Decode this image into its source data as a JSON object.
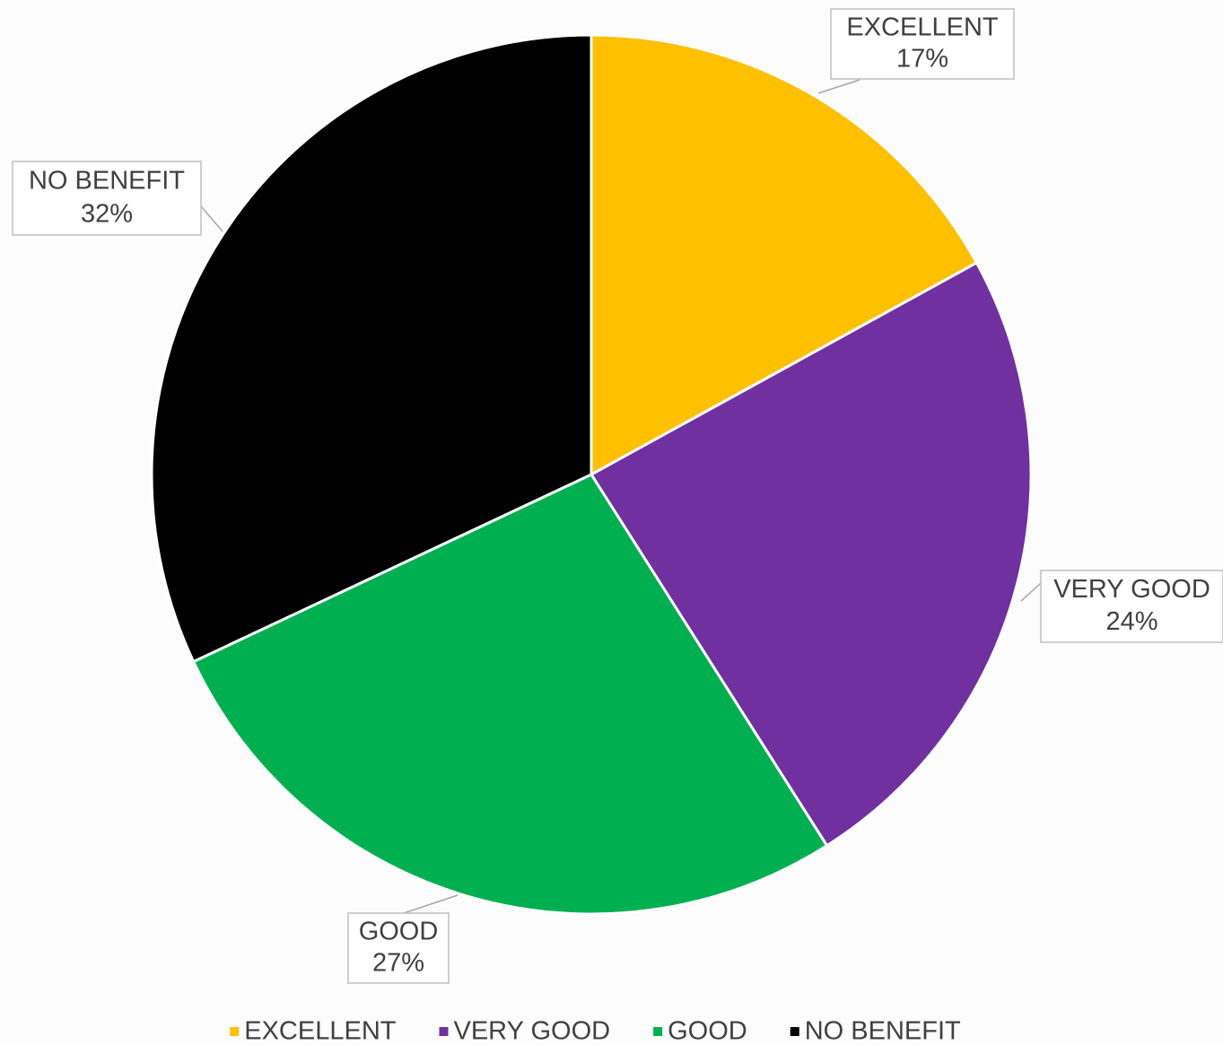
{
  "chart_data": {
    "type": "pie",
    "categories": [
      "EXCELLENT",
      "VERY GOOD",
      "GOOD",
      "NO BENEFIT"
    ],
    "values": [
      17,
      24,
      27,
      32
    ],
    "value_labels": [
      "17%",
      "24%",
      "27%",
      "32%"
    ],
    "colors": [
      "#ffc000",
      "#7030a0",
      "#00b050",
      "#000000"
    ],
    "legend": "bottom"
  }
}
